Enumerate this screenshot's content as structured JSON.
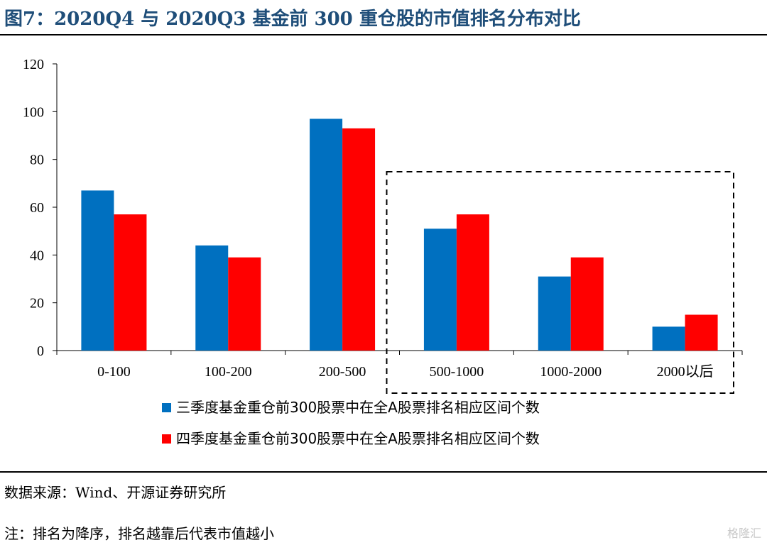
{
  "header": {
    "title": "图7：2020Q4 与 2020Q3  基金前 300 重仓股的市值排名分布对比"
  },
  "chart_data": {
    "type": "bar",
    "categories": [
      "0-100",
      "100-200",
      "200-500",
      "500-1000",
      "1000-2000",
      "2000以后"
    ],
    "series": [
      {
        "name": "三季度基金重仓前300股票中在全A股票排名相应区间个数",
        "color": "#0070c0",
        "values": [
          67,
          44,
          97,
          51,
          31,
          10
        ]
      },
      {
        "name": "四季度基金重仓前300股票中在全A股票排名相应区间个数",
        "color": "#ff0000",
        "values": [
          57,
          39,
          93,
          57,
          39,
          15
        ]
      }
    ],
    "ylim": [
      0,
      120
    ],
    "yticks": [
      0,
      20,
      40,
      60,
      80,
      100,
      120
    ],
    "grid": false,
    "legend_position": "bottom",
    "annotation": "dashed box around 500-1000, 1000-2000, 2000以后",
    "xlabel": "",
    "ylabel": ""
  },
  "footer": {
    "source": "数据来源：Wind、开源证券研究所",
    "note": "注：排名为降序，排名越靠后代表市值越小",
    "watermark": "格隆汇"
  }
}
